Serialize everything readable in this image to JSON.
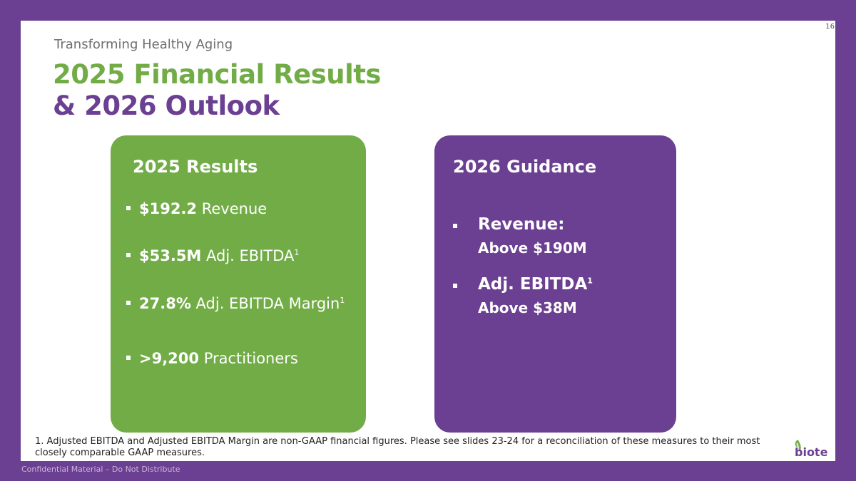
{
  "page_number": "16",
  "header": {
    "kicker": "Transforming Healthy Aging",
    "title_line1": "2025 Financial Results",
    "title_line2": "& 2026 Outlook"
  },
  "results_panel": {
    "heading": "2025 Results",
    "items": [
      {
        "value": "$192.2",
        "label": "Revenue",
        "sup": ""
      },
      {
        "value": "$53.5M",
        "label": "Adj. EBITDA",
        "sup": "1"
      },
      {
        "value": "27.8%",
        "label": "Adj. EBITDA Margin",
        "sup": "1"
      },
      {
        "value": ">9,200",
        "label": "Practitioners",
        "sup": ""
      }
    ]
  },
  "guidance_panel": {
    "heading": "2026 Guidance",
    "items": [
      {
        "label": "Revenue:",
        "sup": "",
        "value": "Above $190M"
      },
      {
        "label": "Adj. EBITDA",
        "sup": "1",
        "value": "Above $38M"
      }
    ]
  },
  "footnote": "1. Adjusted EBITDA and Adjusted EBITDA Margin are non-GAAP financial figures. Please see slides 23-24 for a reconciliation of these measures to their most closely comparable GAAP measures.",
  "logo_text": "biote",
  "confidential": "Confidential Material – Do Not Distribute",
  "colors": {
    "brand_purple": "#6b3f91",
    "brand_green": "#72ac47"
  }
}
